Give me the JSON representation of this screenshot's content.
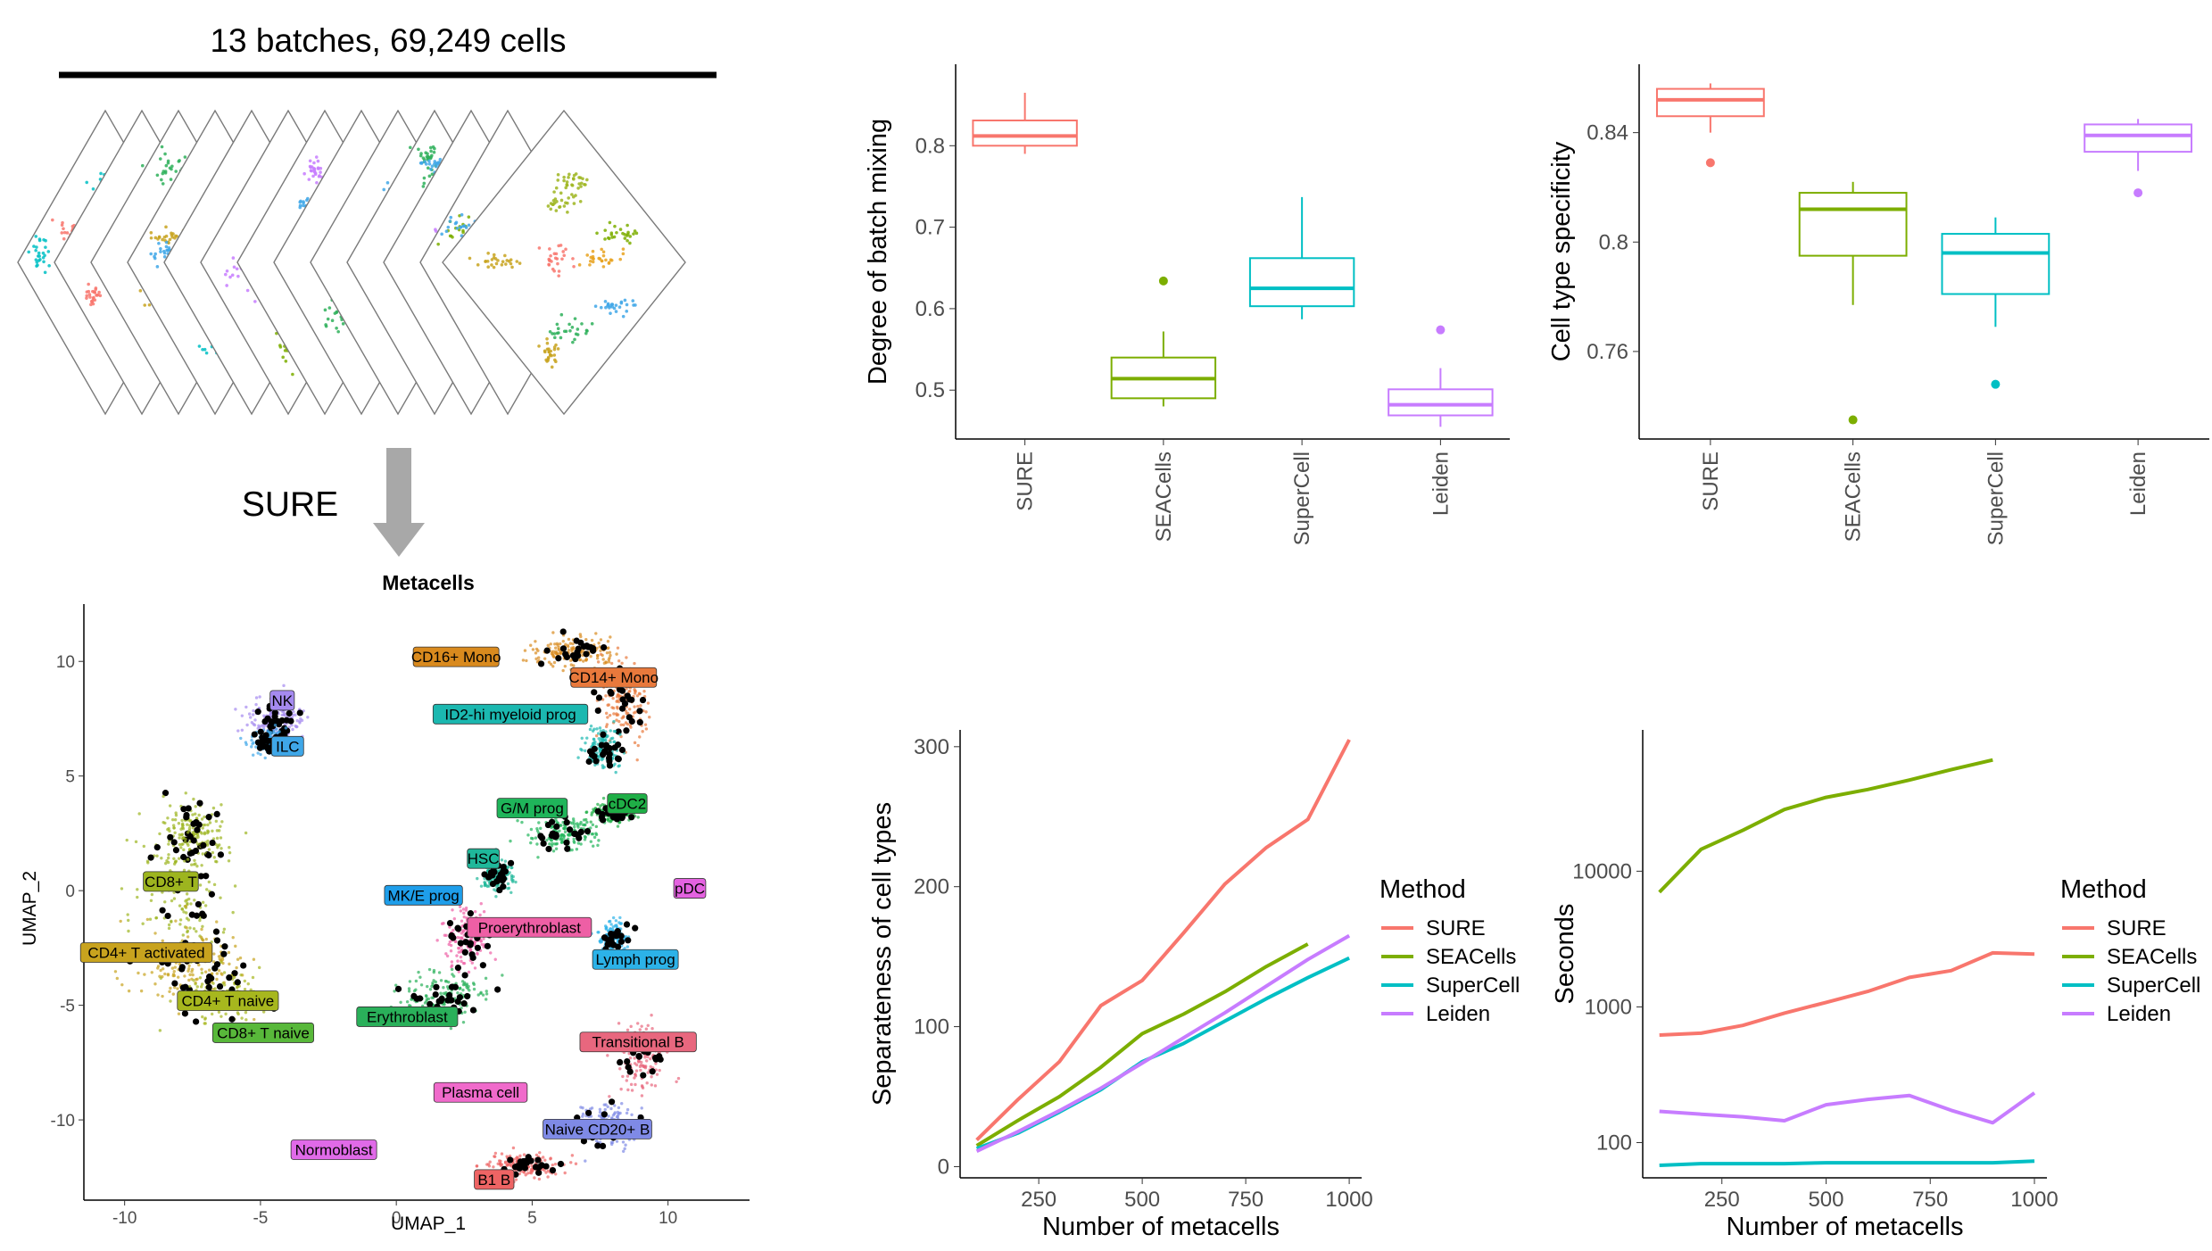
{
  "header": {
    "title": "13 batches, 69,249 cells",
    "arrow_label": "SURE"
  },
  "umap": {
    "title": "Metacells",
    "xlabel": "UMAP_1",
    "ylabel": "UMAP_2",
    "xticks": [
      -10,
      -5,
      0,
      5,
      10
    ],
    "yticks": [
      -10,
      -5,
      0,
      5,
      10
    ],
    "xlim": [
      -11.5,
      13
    ],
    "ylim": [
      -13.5,
      12.5
    ],
    "labels": [
      {
        "text": "CD16+ Mono",
        "x": 2.2,
        "y": 10.2,
        "color": "#D98A1E"
      },
      {
        "text": "CD14+ Mono",
        "x": 8.0,
        "y": 9.3,
        "color": "#E8793C"
      },
      {
        "text": "NK",
        "x": -4.2,
        "y": 8.3,
        "color": "#A58AF0"
      },
      {
        "text": "ID2-hi myeloid prog",
        "x": 4.2,
        "y": 7.7,
        "color": "#1BB8B0"
      },
      {
        "text": "ILC",
        "x": -4.0,
        "y": 6.3,
        "color": "#3FA7E8"
      },
      {
        "text": "G/M prog",
        "x": 5.0,
        "y": 3.6,
        "color": "#1FB55A"
      },
      {
        "text": "cDC2",
        "x": 8.5,
        "y": 3.8,
        "color": "#1FAE46"
      },
      {
        "text": "HSC",
        "x": 3.2,
        "y": 1.4,
        "color": "#1FB89A"
      },
      {
        "text": "CD8+ T",
        "x": -8.3,
        "y": 0.4,
        "color": "#9DB51F"
      },
      {
        "text": "MK/E prog",
        "x": 1.0,
        "y": -0.2,
        "color": "#1E9EEA"
      },
      {
        "text": "pDC",
        "x": 10.8,
        "y": 0.1,
        "color": "#E462E0"
      },
      {
        "text": "Proerythroblast",
        "x": 4.9,
        "y": -1.6,
        "color": "#EE5FA5"
      },
      {
        "text": "CD4+ T activated",
        "x": -9.2,
        "y": -2.7,
        "color": "#C8A31E"
      },
      {
        "text": "Lymph prog",
        "x": 8.8,
        "y": -3.0,
        "color": "#2CB2E8"
      },
      {
        "text": "CD4+ T naive",
        "x": -6.2,
        "y": -4.8,
        "color": "#A7B71E"
      },
      {
        "text": "Erythroblast",
        "x": 0.4,
        "y": -5.5,
        "color": "#2AB05A"
      },
      {
        "text": "CD8+ T naive",
        "x": -4.9,
        "y": -6.2,
        "color": "#58B83A"
      },
      {
        "text": "Transitional B",
        "x": 8.9,
        "y": -6.6,
        "color": "#E8677E"
      },
      {
        "text": "Plasma cell",
        "x": 3.1,
        "y": -8.8,
        "color": "#F06ACB"
      },
      {
        "text": "Naive CD20+ B",
        "x": 7.4,
        "y": -10.4,
        "color": "#7F8AE6"
      },
      {
        "text": "Normoblast",
        "x": -2.3,
        "y": -11.3,
        "color": "#E06AE8"
      },
      {
        "text": "B1 B",
        "x": 3.6,
        "y": -12.6,
        "color": "#EE6464"
      }
    ]
  },
  "colors": {
    "SURE": "#F8766D",
    "SEACells": "#7CAE00",
    "SuperCell": "#00BFC4",
    "Leiden": "#C77CFF",
    "arrow": "#A8A8A8"
  },
  "chart_data": [
    {
      "type": "box",
      "ylabel": "Degree of batch mixing",
      "categories": [
        "SURE",
        "SEACells",
        "SuperCell",
        "Leiden"
      ],
      "ylim": [
        0.44,
        0.9
      ],
      "yticks": [
        0.5,
        0.6,
        0.7,
        0.8
      ],
      "boxes": [
        {
          "name": "SURE",
          "min": 0.79,
          "q1": 0.8,
          "median": 0.812,
          "q3": 0.831,
          "max": 0.865,
          "outliers": []
        },
        {
          "name": "SEACells",
          "min": 0.48,
          "q1": 0.49,
          "median": 0.514,
          "q3": 0.54,
          "max": 0.572,
          "outliers": [
            0.634
          ]
        },
        {
          "name": "SuperCell",
          "min": 0.587,
          "q1": 0.603,
          "median": 0.625,
          "q3": 0.662,
          "max": 0.737,
          "outliers": []
        },
        {
          "name": "Leiden",
          "min": 0.455,
          "q1": 0.469,
          "median": 0.482,
          "q3": 0.501,
          "max": 0.527,
          "outliers": [
            0.574
          ]
        }
      ]
    },
    {
      "type": "box",
      "ylabel": "Cell type specificity",
      "categories": [
        "SURE",
        "SEACells",
        "SuperCell",
        "Leiden"
      ],
      "ylim": [
        0.728,
        0.865
      ],
      "yticks": [
        0.76,
        0.8,
        0.84
      ],
      "boxes": [
        {
          "name": "SURE",
          "min": 0.84,
          "q1": 0.846,
          "median": 0.852,
          "q3": 0.856,
          "max": 0.858,
          "outliers": [
            0.829
          ]
        },
        {
          "name": "SEACells",
          "min": 0.777,
          "q1": 0.795,
          "median": 0.812,
          "q3": 0.818,
          "max": 0.822,
          "outliers": [
            0.735
          ]
        },
        {
          "name": "SuperCell",
          "min": 0.769,
          "q1": 0.781,
          "median": 0.796,
          "q3": 0.803,
          "max": 0.809,
          "outliers": [
            0.748
          ]
        },
        {
          "name": "Leiden",
          "min": 0.826,
          "q1": 0.833,
          "median": 0.839,
          "q3": 0.843,
          "max": 0.845,
          "outliers": [
            0.818
          ]
        }
      ]
    },
    {
      "type": "line",
      "xlabel": "Number of metacells",
      "ylabel": "Separateness of cell types",
      "xlim": [
        60,
        1030
      ],
      "ylim": [
        -8,
        312
      ],
      "xticks": [
        250,
        500,
        750,
        1000
      ],
      "yticks": [
        0,
        100,
        200,
        300
      ],
      "x": [
        100,
        200,
        300,
        400,
        500,
        600,
        700,
        800,
        900,
        1000
      ],
      "series": [
        {
          "name": "SURE",
          "values": [
            19,
            48,
            75,
            115,
            133,
            167,
            202,
            228,
            248,
            305
          ]
        },
        {
          "name": "SEACells",
          "values": [
            15,
            33,
            50,
            71,
            95,
            109,
            125,
            143,
            159,
            null
          ]
        },
        {
          "name": "SuperCell",
          "values": [
            13,
            24,
            39,
            55,
            75,
            88,
            104,
            120,
            135,
            149
          ]
        },
        {
          "name": "Leiden",
          "values": [
            11,
            25,
            40,
            56,
            74,
            92,
            110,
            129,
            148,
            165
          ]
        }
      ],
      "legend": {
        "title": "Method",
        "position": "right"
      }
    },
    {
      "type": "line",
      "log_y": true,
      "xlabel": "Number of metacells",
      "ylabel": "Seconds",
      "xlim": [
        60,
        1030
      ],
      "ylim": [
        55,
        110000
      ],
      "xticks": [
        250,
        500,
        750,
        1000
      ],
      "yticks": [
        100,
        1000,
        10000
      ],
      "ytick_labels": [
        "100",
        "1000",
        "10000"
      ],
      "x": [
        100,
        200,
        300,
        400,
        500,
        600,
        700,
        800,
        900,
        1000
      ],
      "series": [
        {
          "name": "SURE",
          "values": [
            620,
            640,
            730,
            900,
            1080,
            1300,
            1650,
            1850,
            2500,
            2450
          ]
        },
        {
          "name": "SEACells",
          "values": [
            7000,
            14500,
            20000,
            28500,
            35000,
            40000,
            47000,
            56000,
            66000,
            null
          ]
        },
        {
          "name": "SuperCell",
          "values": [
            68,
            70,
            70,
            70,
            71,
            71,
            71,
            71,
            71,
            73
          ]
        },
        {
          "name": "Leiden",
          "values": [
            170,
            162,
            155,
            145,
            190,
            208,
            222,
            173,
            140,
            232
          ]
        }
      ],
      "legend": {
        "title": "Method",
        "position": "right"
      }
    }
  ]
}
